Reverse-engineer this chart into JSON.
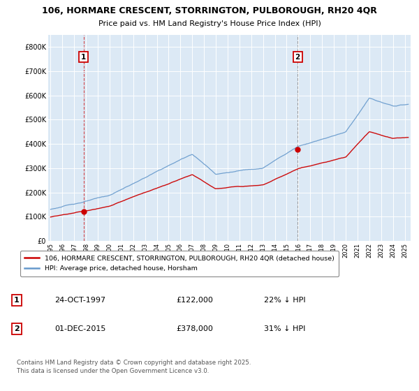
{
  "title_line1": "106, HORMARE CRESCENT, STORRINGTON, PULBOROUGH, RH20 4QR",
  "title_line2": "Price paid vs. HM Land Registry's House Price Index (HPI)",
  "ylim": [
    0,
    850000
  ],
  "xlim": [
    1994.8,
    2025.5
  ],
  "yticks": [
    0,
    100000,
    200000,
    300000,
    400000,
    500000,
    600000,
    700000,
    800000
  ],
  "ytick_labels": [
    "£0",
    "£100K",
    "£200K",
    "£300K",
    "£400K",
    "£500K",
    "£600K",
    "£700K",
    "£800K"
  ],
  "xticks": [
    1995,
    1996,
    1997,
    1998,
    1999,
    2000,
    2001,
    2002,
    2003,
    2004,
    2005,
    2006,
    2007,
    2008,
    2009,
    2010,
    2011,
    2012,
    2013,
    2014,
    2015,
    2016,
    2017,
    2018,
    2019,
    2020,
    2021,
    2022,
    2023,
    2024,
    2025
  ],
  "purchase1_x": 1997.81,
  "purchase1_y": 122000,
  "purchase2_x": 2015.92,
  "purchase2_y": 378000,
  "red_color": "#cc0000",
  "blue_color": "#6699cc",
  "vline1_color": "#cc0000",
  "vline2_color": "#888888",
  "legend_entry1": "106, HORMARE CRESCENT, STORRINGTON, PULBOROUGH, RH20 4QR (detached house)",
  "legend_entry2": "HPI: Average price, detached house, Horsham",
  "annotation1_date": "24-OCT-1997",
  "annotation1_price": "£122,000",
  "annotation1_hpi": "22% ↓ HPI",
  "annotation2_date": "01-DEC-2015",
  "annotation2_price": "£378,000",
  "annotation2_hpi": "31% ↓ HPI",
  "footer": "Contains HM Land Registry data © Crown copyright and database right 2025.\nThis data is licensed under the Open Government Licence v3.0.",
  "background_color": "#ffffff",
  "plot_bg_color": "#dce9f5"
}
